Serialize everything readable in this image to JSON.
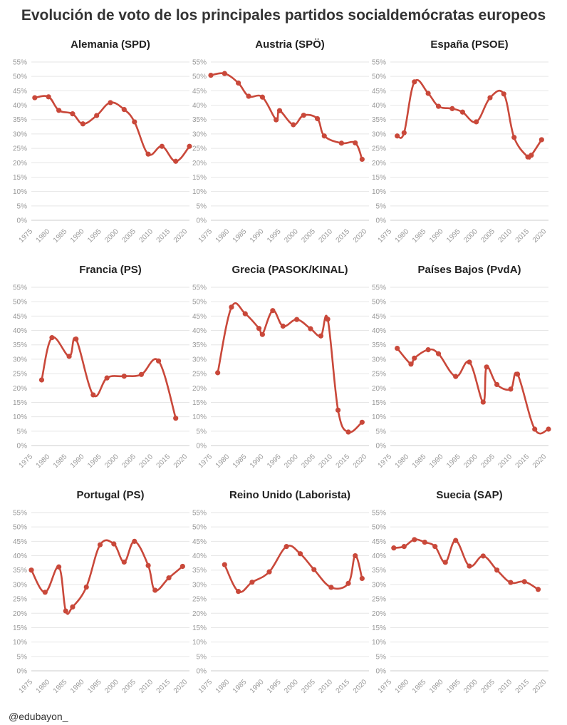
{
  "title": "Evolución de voto de los principales partidos socialdemócratas europeos",
  "credit": "@edubayon_",
  "colors": {
    "series": "#c9483a",
    "grid": "#e6e6e6",
    "tick": "#999999"
  },
  "chart_data": {
    "type": "line",
    "grid": true,
    "ylim": [
      0,
      55
    ],
    "yticks": [
      "0%",
      "5%",
      "10%",
      "15%",
      "20%",
      "25%",
      "30%",
      "35%",
      "40%",
      "45%",
      "50%",
      "55%"
    ],
    "xlim": [
      1975,
      2021
    ],
    "xticks": [
      "1975",
      "1980",
      "1985",
      "1990",
      "1995",
      "2000",
      "2005",
      "2010",
      "2015",
      "2020"
    ],
    "panels": [
      {
        "title": "Alemania (SPD)",
        "x": [
          1976,
          1980,
          1983,
          1987,
          1990,
          1994,
          1998,
          2002,
          2005,
          2009,
          2013,
          2017,
          2021
        ],
        "y": [
          42.6,
          42.9,
          38.2,
          37.0,
          33.5,
          36.4,
          40.9,
          38.5,
          34.2,
          23.0,
          25.7,
          20.5,
          25.7
        ]
      },
      {
        "title": "Austria (SPÖ)",
        "x": [
          1975,
          1979,
          1983,
          1986,
          1990,
          1994,
          1995,
          1999,
          2002,
          2006,
          2008,
          2013,
          2017,
          2019
        ],
        "y": [
          50.4,
          51.0,
          47.7,
          43.1,
          42.8,
          34.9,
          38.1,
          33.2,
          36.5,
          35.3,
          29.3,
          26.8,
          26.9,
          21.2
        ]
      },
      {
        "title": "España (PSOE)",
        "x": [
          1977,
          1979,
          1982,
          1986,
          1989,
          1993,
          1996,
          2000,
          2004,
          2008,
          2011,
          2015,
          2016,
          2019
        ],
        "y": [
          29.3,
          30.4,
          48.1,
          44.1,
          39.6,
          38.8,
          37.6,
          34.2,
          42.6,
          43.9,
          28.8,
          22.0,
          22.6,
          28.0
        ]
      },
      {
        "title": "Francia (PS)",
        "x": [
          1978,
          1981,
          1986,
          1988,
          1993,
          1997,
          2002,
          2007,
          2012,
          2017
        ],
        "y": [
          22.8,
          37.5,
          31.0,
          37.0,
          17.6,
          23.5,
          24.1,
          24.7,
          29.4,
          9.5
        ]
      },
      {
        "title": "Grecia (PASOK/KINAL)",
        "x": [
          1977,
          1981,
          1985,
          1989,
          1990,
          1993,
          1996,
          2000,
          2004,
          2007,
          2009,
          2012,
          2015,
          2019
        ],
        "y": [
          25.3,
          48.1,
          45.8,
          40.7,
          38.6,
          46.9,
          41.5,
          43.8,
          40.6,
          38.1,
          43.9,
          12.3,
          4.7,
          8.1
        ]
      },
      {
        "title": "Países Bajos (PvdA)",
        "x": [
          1977,
          1981,
          1982,
          1986,
          1989,
          1994,
          1998,
          2002,
          2003,
          2006,
          2010,
          2012,
          2017,
          2021
        ],
        "y": [
          33.8,
          28.3,
          30.4,
          33.3,
          31.9,
          24.0,
          29.0,
          15.1,
          27.3,
          21.2,
          19.6,
          24.8,
          5.7,
          5.7
        ]
      },
      {
        "title": "Portugal (PS)",
        "x": [
          1975,
          1979,
          1983,
          1985,
          1987,
          1991,
          1995,
          1999,
          2002,
          2005,
          2009,
          2011,
          2015,
          2019
        ],
        "y": [
          35.0,
          27.3,
          36.1,
          20.8,
          22.2,
          29.1,
          43.8,
          44.1,
          37.8,
          45.0,
          36.6,
          28.0,
          32.3,
          36.3
        ]
      },
      {
        "title": "Reino Unido (Laborista)",
        "x": [
          1979,
          1983,
          1987,
          1992,
          1997,
          2001,
          2005,
          2010,
          2015,
          2017,
          2019
        ],
        "y": [
          36.9,
          27.6,
          30.8,
          34.4,
          43.2,
          40.7,
          35.2,
          29.0,
          30.4,
          40.0,
          32.1
        ]
      },
      {
        "title": "Suecia (SAP)",
        "x": [
          1976,
          1979,
          1982,
          1985,
          1988,
          1991,
          1994,
          1998,
          2002,
          2006,
          2010,
          2014,
          2018
        ],
        "y": [
          42.7,
          43.2,
          45.6,
          44.7,
          43.2,
          37.7,
          45.3,
          36.4,
          39.9,
          35.0,
          30.7,
          31.0,
          28.3
        ]
      }
    ]
  }
}
